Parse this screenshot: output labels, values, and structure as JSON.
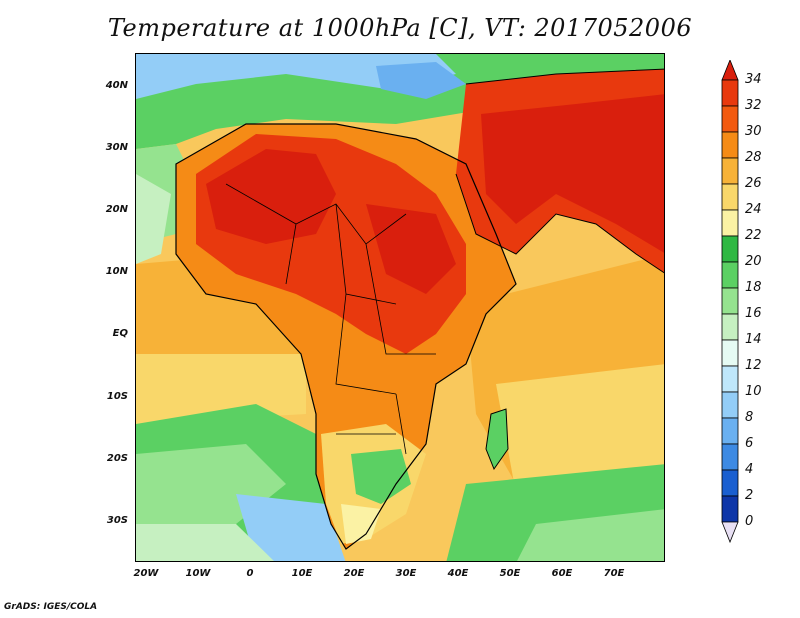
{
  "title": "Temperature at 1000hPa [C], VT: 2017052006",
  "credit": "GrADS: IGES/COLA",
  "lat_labels": [
    "40N",
    "30N",
    "20N",
    "10N",
    "EQ",
    "10S",
    "20S",
    "30S"
  ],
  "lon_labels": [
    "20W",
    "10W",
    "0",
    "10E",
    "20E",
    "30E",
    "40E",
    "50E",
    "60E",
    "70E"
  ],
  "colorbar": {
    "labels": [
      "34",
      "32",
      "30",
      "28",
      "26",
      "24",
      "22",
      "20",
      "18",
      "16",
      "14",
      "12",
      "10",
      "8",
      "6",
      "4",
      "2",
      "0"
    ],
    "colors": [
      "#d91f0d",
      "#e8390e",
      "#f25a10",
      "#f58b16",
      "#f7b238",
      "#f9d76a",
      "#fbf2a4",
      "#2fb843",
      "#5bd063",
      "#95e38f",
      "#c6f0c1",
      "#e6fbf4",
      "#bfe7fb",
      "#93cdf7",
      "#6ab0f0",
      "#3d8ae3",
      "#1a5fd0",
      "#0e36a8",
      "#081b6e"
    ]
  }
}
